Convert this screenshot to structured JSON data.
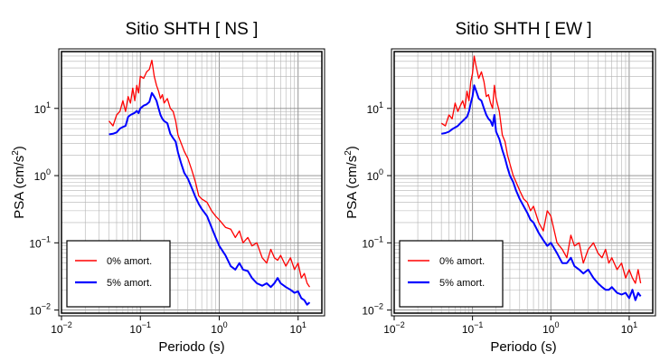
{
  "chart_data": [
    {
      "type": "line",
      "title": "Sitio SHTH [ NS ]",
      "xlabel": "Periodo (s)",
      "ylabel": "PSA (cm/s²)",
      "ylabel_main": "PSA (cm/s",
      "ylabel_sup": "2",
      "ylabel_close": ")",
      "x_scale": "log",
      "y_scale": "log",
      "xlim": [
        0.01,
        20
      ],
      "ylim": [
        0.009,
        70
      ],
      "grid": true,
      "legend_position": "bottom-left",
      "x_ticks": [
        {
          "value": 0.01,
          "base": "10",
          "exp": "−2"
        },
        {
          "value": 0.1,
          "base": "10",
          "exp": "−1"
        },
        {
          "value": 1,
          "base": "10",
          "exp": "0"
        },
        {
          "value": 10,
          "base": "10",
          "exp": "1"
        }
      ],
      "y_ticks": [
        {
          "value": 0.01,
          "base": "10",
          "exp": "−2"
        },
        {
          "value": 0.1,
          "base": "10",
          "exp": "−1"
        },
        {
          "value": 1,
          "base": "10",
          "exp": "0"
        },
        {
          "value": 10,
          "base": "10",
          "exp": "1"
        }
      ],
      "series": [
        {
          "name": "0% amort.",
          "color": "#ff0000",
          "x": [
            0.04,
            0.045,
            0.05,
            0.055,
            0.06,
            0.065,
            0.07,
            0.075,
            0.08,
            0.085,
            0.09,
            0.095,
            0.1,
            0.11,
            0.12,
            0.13,
            0.14,
            0.15,
            0.16,
            0.17,
            0.18,
            0.19,
            0.2,
            0.22,
            0.24,
            0.26,
            0.28,
            0.3,
            0.33,
            0.36,
            0.4,
            0.45,
            0.5,
            0.55,
            0.6,
            0.7,
            0.8,
            0.9,
            1.0,
            1.2,
            1.4,
            1.6,
            1.8,
            2.0,
            2.3,
            2.6,
            3.0,
            3.5,
            4.0,
            4.5,
            5.0,
            5.5,
            6.0,
            7.0,
            8.0,
            9.0,
            10,
            11,
            12,
            13,
            14
          ],
          "y": [
            6.5,
            5.5,
            8,
            9,
            13,
            9,
            15,
            12,
            20,
            13,
            22,
            17,
            30,
            28,
            35,
            38,
            52,
            30,
            22,
            18,
            14,
            16,
            12,
            14,
            10,
            9,
            6.5,
            4.0,
            3.0,
            2.3,
            1.8,
            1.2,
            0.8,
            0.5,
            0.45,
            0.4,
            0.3,
            0.25,
            0.22,
            0.17,
            0.16,
            0.12,
            0.15,
            0.1,
            0.12,
            0.09,
            0.1,
            0.06,
            0.05,
            0.08,
            0.06,
            0.055,
            0.065,
            0.045,
            0.06,
            0.04,
            0.05,
            0.03,
            0.035,
            0.025,
            0.022
          ]
        },
        {
          "name": "5% amort.",
          "color": "#0000ff",
          "x": [
            0.04,
            0.045,
            0.05,
            0.055,
            0.06,
            0.065,
            0.07,
            0.075,
            0.08,
            0.085,
            0.09,
            0.095,
            0.1,
            0.11,
            0.12,
            0.13,
            0.14,
            0.15,
            0.16,
            0.17,
            0.18,
            0.19,
            0.2,
            0.22,
            0.24,
            0.26,
            0.28,
            0.3,
            0.33,
            0.36,
            0.4,
            0.45,
            0.5,
            0.55,
            0.6,
            0.7,
            0.8,
            0.9,
            1.0,
            1.2,
            1.4,
            1.6,
            1.8,
            2.0,
            2.3,
            2.6,
            3.0,
            3.5,
            4.0,
            4.5,
            5.0,
            5.5,
            6.0,
            7.0,
            8.0,
            9.0,
            10,
            11,
            12,
            13,
            14
          ],
          "y": [
            4.1,
            4.2,
            4.4,
            5.0,
            5.3,
            5.5,
            7.5,
            8.0,
            8.3,
            8.6,
            9.2,
            8.5,
            10,
            11,
            11.5,
            12.5,
            17,
            15,
            13,
            10,
            8,
            7,
            6.5,
            6.0,
            4.2,
            3.6,
            3.2,
            2.2,
            1.5,
            1.1,
            0.9,
            0.65,
            0.48,
            0.38,
            0.32,
            0.25,
            0.17,
            0.12,
            0.09,
            0.065,
            0.045,
            0.04,
            0.05,
            0.04,
            0.038,
            0.03,
            0.025,
            0.023,
            0.025,
            0.022,
            0.025,
            0.03,
            0.025,
            0.022,
            0.02,
            0.018,
            0.019,
            0.015,
            0.014,
            0.012,
            0.013
          ]
        }
      ]
    },
    {
      "type": "line",
      "title": "Sitio SHTH [ EW ]",
      "xlabel": "Periodo (s)",
      "ylabel": "PSA (cm/s²)",
      "ylabel_main": "PSA (cm/s",
      "ylabel_sup": "2",
      "ylabel_close": ")",
      "x_scale": "log",
      "y_scale": "log",
      "xlim": [
        0.01,
        20
      ],
      "ylim": [
        0.009,
        70
      ],
      "grid": true,
      "legend_position": "bottom-left",
      "x_ticks": [
        {
          "value": 0.01,
          "base": "10",
          "exp": "−2"
        },
        {
          "value": 0.1,
          "base": "10",
          "exp": "−1"
        },
        {
          "value": 1,
          "base": "10",
          "exp": "0"
        },
        {
          "value": 10,
          "base": "10",
          "exp": "1"
        }
      ],
      "y_ticks": [
        {
          "value": 0.01,
          "base": "10",
          "exp": "−2"
        },
        {
          "value": 0.1,
          "base": "10",
          "exp": "−1"
        },
        {
          "value": 1,
          "base": "10",
          "exp": "0"
        },
        {
          "value": 10,
          "base": "10",
          "exp": "1"
        }
      ],
      "series": [
        {
          "name": "0% amort.",
          "color": "#ff0000",
          "x": [
            0.04,
            0.045,
            0.05,
            0.055,
            0.06,
            0.065,
            0.07,
            0.075,
            0.08,
            0.085,
            0.09,
            0.095,
            0.1,
            0.105,
            0.11,
            0.12,
            0.13,
            0.14,
            0.15,
            0.16,
            0.17,
            0.18,
            0.19,
            0.2,
            0.22,
            0.24,
            0.26,
            0.28,
            0.3,
            0.33,
            0.36,
            0.4,
            0.45,
            0.5,
            0.55,
            0.6,
            0.7,
            0.8,
            0.9,
            1.0,
            1.2,
            1.4,
            1.6,
            1.8,
            2.0,
            2.3,
            2.6,
            3.0,
            3.5,
            4.0,
            4.5,
            5.0,
            5.5,
            6.0,
            7.0,
            8.0,
            9.0,
            10,
            11,
            12,
            13,
            14
          ],
          "y": [
            6.0,
            5.5,
            8,
            7,
            12,
            9,
            11,
            13,
            10,
            18,
            13,
            25,
            33,
            60,
            45,
            28,
            35,
            25,
            15,
            16,
            12,
            10,
            22,
            14,
            9,
            4.0,
            3.2,
            2.0,
            1.5,
            1.0,
            0.8,
            0.6,
            0.45,
            0.4,
            0.3,
            0.35,
            0.2,
            0.15,
            0.3,
            0.25,
            0.1,
            0.08,
            0.06,
            0.13,
            0.09,
            0.1,
            0.05,
            0.08,
            0.1,
            0.07,
            0.06,
            0.08,
            0.05,
            0.06,
            0.04,
            0.05,
            0.03,
            0.04,
            0.03,
            0.025,
            0.04,
            0.025
          ]
        },
        {
          "name": "5% amort.",
          "color": "#0000ff",
          "x": [
            0.04,
            0.045,
            0.05,
            0.055,
            0.06,
            0.065,
            0.07,
            0.075,
            0.08,
            0.085,
            0.09,
            0.095,
            0.1,
            0.105,
            0.11,
            0.12,
            0.13,
            0.14,
            0.15,
            0.16,
            0.17,
            0.18,
            0.19,
            0.2,
            0.22,
            0.24,
            0.26,
            0.28,
            0.3,
            0.33,
            0.36,
            0.4,
            0.45,
            0.5,
            0.55,
            0.6,
            0.7,
            0.8,
            0.9,
            1.0,
            1.2,
            1.4,
            1.6,
            1.8,
            2.0,
            2.3,
            2.6,
            3.0,
            3.5,
            4.0,
            4.5,
            5.0,
            5.5,
            6.0,
            7.0,
            8.0,
            9.0,
            10,
            11,
            12,
            13,
            14
          ],
          "y": [
            4.2,
            4.3,
            4.5,
            4.9,
            5.2,
            5.5,
            6.0,
            6.5,
            7.0,
            7.5,
            9.0,
            12,
            15,
            22,
            19,
            14,
            13,
            10,
            8.0,
            7.0,
            6.5,
            5.5,
            8.0,
            4.5,
            3.5,
            2.4,
            1.8,
            1.3,
            1.0,
            0.8,
            0.6,
            0.45,
            0.35,
            0.28,
            0.22,
            0.2,
            0.14,
            0.11,
            0.09,
            0.1,
            0.07,
            0.05,
            0.05,
            0.06,
            0.045,
            0.04,
            0.035,
            0.04,
            0.03,
            0.025,
            0.022,
            0.02,
            0.02,
            0.022,
            0.018,
            0.017,
            0.018,
            0.015,
            0.02,
            0.014,
            0.018,
            0.016
          ]
        }
      ]
    }
  ]
}
